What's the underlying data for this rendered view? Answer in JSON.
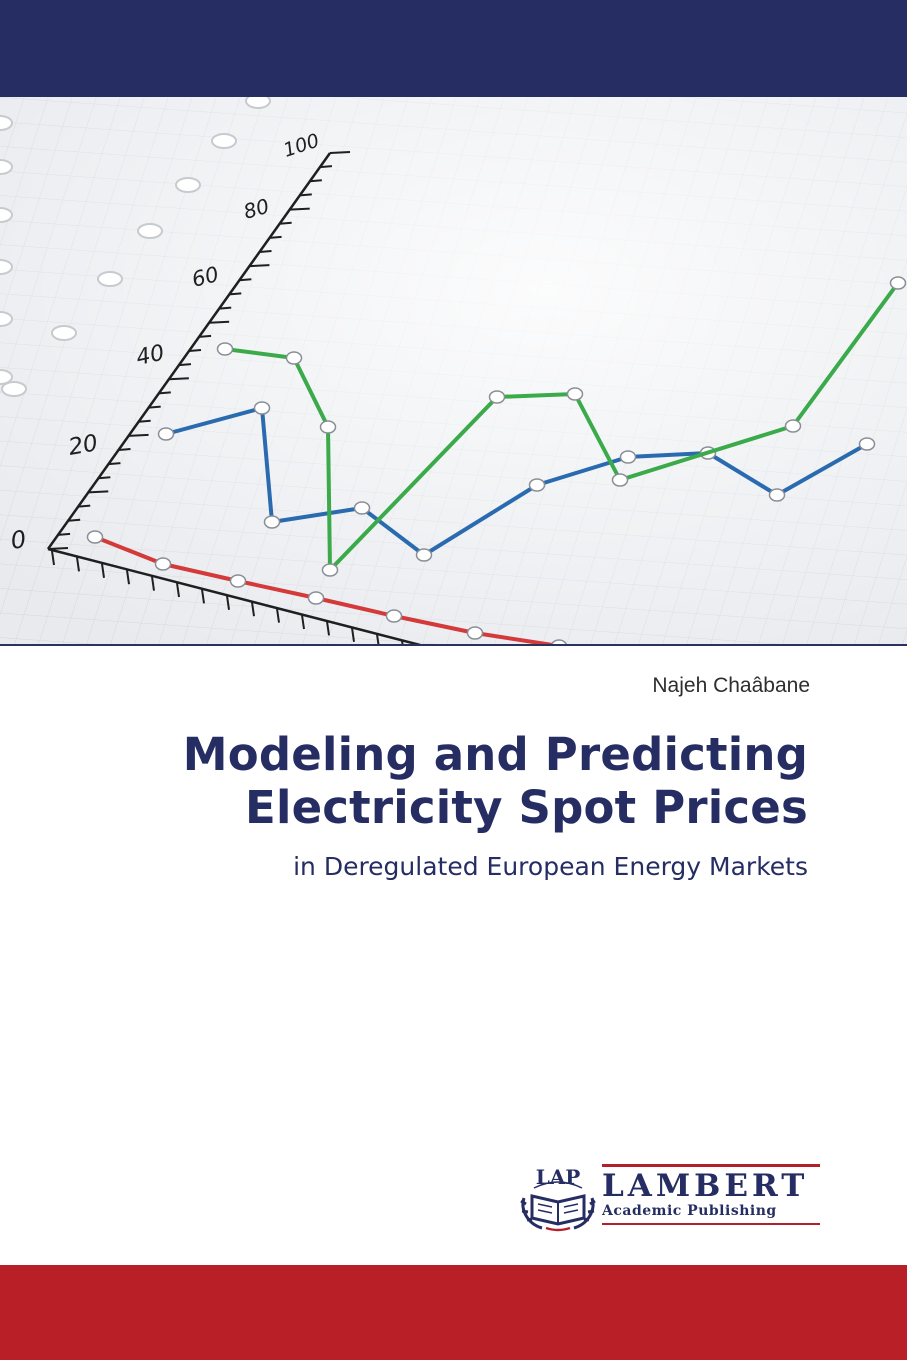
{
  "cover": {
    "author": "Najeh Chaâbane",
    "title_line1": "Modeling and Predicting",
    "title_line2": "Electricity Spot Prices",
    "subtitle": "in Deregulated European Energy Markets"
  },
  "publisher": {
    "emblem_text": "LAP",
    "name": "LAMBERT",
    "tagline": "Academic Publishing"
  },
  "artwork": {
    "y_tick_labels": [
      "0",
      "20",
      "40",
      "60",
      "80",
      "100"
    ]
  },
  "colors": {
    "navy": "#252d63",
    "red": "#b81f27",
    "series_blue": "#2a6bb0",
    "series_green": "#3aaa4a",
    "series_red": "#d43a3a"
  }
}
